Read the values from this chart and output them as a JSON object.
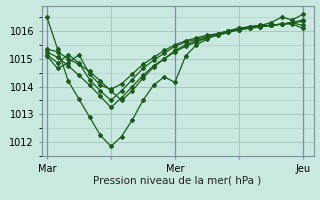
{
  "title": "",
  "xlabel": "Pression niveau de la mer( hPa )",
  "bg_color": "#c8e8e0",
  "grid_color": "#a8c8c0",
  "line_color": "#1a5c1a",
  "xtick_labels": [
    "Mar",
    "",
    "Mer",
    "",
    "Jeu"
  ],
  "xtick_positions": [
    0,
    48,
    96,
    144,
    192
  ],
  "vline_positions": [
    0,
    96,
    192
  ],
  "ylim": [
    1011.5,
    1016.9
  ],
  "yticks": [
    1012,
    1013,
    1014,
    1015,
    1016
  ],
  "xlim": [
    -4,
    200
  ],
  "lines": [
    [
      0,
      1016.5,
      8,
      1015.35,
      16,
      1014.2,
      24,
      1013.55,
      32,
      1012.9,
      40,
      1012.25,
      48,
      1011.85,
      56,
      1012.2,
      64,
      1012.8,
      72,
      1013.5,
      80,
      1014.05,
      88,
      1014.35,
      96,
      1014.15,
      104,
      1015.1,
      112,
      1015.5,
      120,
      1015.7,
      128,
      1015.9,
      136,
      1016.0,
      144,
      1016.05,
      152,
      1016.15,
      160,
      1016.2,
      168,
      1016.3,
      176,
      1016.5,
      184,
      1016.4,
      192,
      1016.6
    ],
    [
      0,
      1015.35,
      8,
      1015.25,
      16,
      1015.0,
      24,
      1014.8,
      32,
      1014.55,
      40,
      1014.2,
      48,
      1013.85,
      56,
      1013.5,
      64,
      1013.85,
      72,
      1014.3,
      80,
      1014.7,
      88,
      1015.0,
      96,
      1015.3,
      104,
      1015.5,
      112,
      1015.65,
      120,
      1015.75,
      128,
      1015.85,
      136,
      1015.95,
      144,
      1016.05,
      152,
      1016.1,
      160,
      1016.15,
      168,
      1016.2,
      176,
      1016.25,
      184,
      1016.3,
      192,
      1016.4
    ],
    [
      0,
      1015.25,
      8,
      1015.05,
      16,
      1014.75,
      24,
      1014.4,
      32,
      1014.05,
      40,
      1013.65,
      48,
      1013.25,
      56,
      1013.6,
      64,
      1014.0,
      72,
      1014.4,
      80,
      1014.75,
      88,
      1015.0,
      96,
      1015.25,
      104,
      1015.45,
      112,
      1015.6,
      120,
      1015.75,
      128,
      1015.85,
      136,
      1015.95,
      144,
      1016.05,
      152,
      1016.1,
      160,
      1016.15,
      168,
      1016.2,
      176,
      1016.25,
      184,
      1016.3,
      192,
      1016.35
    ],
    [
      0,
      1015.15,
      8,
      1014.85,
      16,
      1015.15,
      24,
      1014.85,
      32,
      1014.25,
      40,
      1013.85,
      48,
      1013.5,
      56,
      1013.85,
      64,
      1014.25,
      72,
      1014.65,
      80,
      1014.95,
      88,
      1015.2,
      96,
      1015.45,
      104,
      1015.6,
      112,
      1015.7,
      120,
      1015.8,
      128,
      1015.9,
      136,
      1016.0,
      144,
      1016.1,
      152,
      1016.15,
      160,
      1016.2,
      168,
      1016.2,
      176,
      1016.25,
      184,
      1016.3,
      192,
      1016.2
    ],
    [
      0,
      1015.1,
      8,
      1014.65,
      16,
      1014.85,
      24,
      1015.15,
      32,
      1014.45,
      40,
      1014.05,
      48,
      1013.9,
      56,
      1014.1,
      64,
      1014.45,
      72,
      1014.8,
      80,
      1015.05,
      88,
      1015.3,
      96,
      1015.5,
      104,
      1015.65,
      112,
      1015.75,
      120,
      1015.85,
      128,
      1015.9,
      136,
      1016.0,
      144,
      1016.1,
      152,
      1016.15,
      160,
      1016.2,
      168,
      1016.2,
      176,
      1016.25,
      184,
      1016.25,
      192,
      1016.1
    ]
  ]
}
